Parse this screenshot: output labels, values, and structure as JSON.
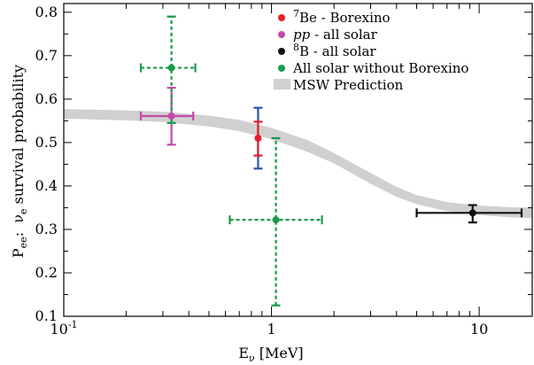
{
  "chart_data": {
    "type": "scatter",
    "title": "",
    "xlabel": "Eν [MeV]",
    "xlabel_parts": {
      "main": "E",
      "sub": "ν",
      "tail": " [MeV]"
    },
    "ylabel": "Pee: νe survival probability",
    "ylabel_parts": {
      "p": "P",
      "p_sub": "ee",
      "colon": ":  ",
      "nu": "ν",
      "nu_sub": "e",
      "tail": " survival probability"
    },
    "xscale": "log",
    "xlim": [
      0.1,
      18
    ],
    "ylim": [
      0.1,
      0.82
    ],
    "grid": false,
    "legend_position": "top-right",
    "x_ticks": [
      {
        "value": 0.1,
        "label_main": "10",
        "label_exp": "-1"
      },
      {
        "value": 1,
        "label_main": "1",
        "label_exp": ""
      },
      {
        "value": 10,
        "label_main": "10",
        "label_exp": ""
      }
    ],
    "y_ticks": [
      {
        "value": 0.1,
        "label": "0.1"
      },
      {
        "value": 0.2,
        "label": "0.2"
      },
      {
        "value": 0.3,
        "label": "0.3"
      },
      {
        "value": 0.4,
        "label": "0.4"
      },
      {
        "value": 0.5,
        "label": "0.5"
      },
      {
        "value": 0.6,
        "label": "0.6"
      },
      {
        "value": 0.7,
        "label": "0.7"
      },
      {
        "value": 0.8,
        "label": "0.8"
      }
    ],
    "series": [
      {
        "name": "7Be - Borexino",
        "legend_sup": "7",
        "legend_main": "Be - Borexino",
        "legend_italic": "",
        "color": "#e8202a",
        "errorbar_color": "#2a52b8",
        "errorbar_dashed": false,
        "points": [
          {
            "x": 0.862,
            "y": 0.51,
            "xerr": [
              0,
              0
            ],
            "yerr_outer": [
              0.44,
              0.58
            ],
            "yerr_inner": [
              0.47,
              0.548
            ]
          }
        ]
      },
      {
        "name": "pp - all solar",
        "legend_sup": "",
        "legend_italic": "pp",
        "legend_main": " - all solar",
        "color": "#c44aa8",
        "errorbar_color": "#c44aa8",
        "errorbar_dashed": false,
        "points": [
          {
            "x": 0.33,
            "y": 0.561,
            "xerr": [
              0.235,
              0.42
            ],
            "yerr_outer": [
              0.495,
              0.626
            ],
            "yerr_inner": null
          }
        ]
      },
      {
        "name": "8B - all solar",
        "legend_sup": "8",
        "legend_main": "B - all solar",
        "legend_italic": "",
        "color": "#111111",
        "errorbar_color": "#111111",
        "errorbar_dashed": false,
        "points": [
          {
            "x": 9.3,
            "y": 0.338,
            "xerr": [
              5.0,
              16.0
            ],
            "yerr_outer": [
              0.316,
              0.356
            ],
            "yerr_inner": null
          }
        ]
      },
      {
        "name": "All solar without Borexino",
        "legend_sup": "",
        "legend_main": "All solar without Borexino",
        "legend_italic": "",
        "color": "#1a9a4a",
        "errorbar_color": "#1a9a4a",
        "errorbar_dashed": true,
        "points": [
          {
            "x": 0.33,
            "y": 0.672,
            "xerr": [
              0.235,
              0.43
            ],
            "yerr_outer": [
              0.545,
              0.79
            ],
            "yerr_inner": null
          },
          {
            "x": 1.05,
            "y": 0.322,
            "xerr": [
              0.63,
              1.75
            ],
            "yerr_outer": [
              0.125,
              0.51
            ],
            "yerr_inner": null
          }
        ]
      }
    ],
    "band": {
      "name": "MSW Prediction",
      "color": "#d0d0d0",
      "points": [
        {
          "x": 0.1,
          "lo": 0.555,
          "hi": 0.577
        },
        {
          "x": 0.2,
          "lo": 0.551,
          "hi": 0.574
        },
        {
          "x": 0.3,
          "lo": 0.547,
          "hi": 0.571
        },
        {
          "x": 0.5,
          "lo": 0.537,
          "hi": 0.562
        },
        {
          "x": 0.7,
          "lo": 0.526,
          "hi": 0.552
        },
        {
          "x": 1.0,
          "lo": 0.508,
          "hi": 0.534
        },
        {
          "x": 1.5,
          "lo": 0.478,
          "hi": 0.505
        },
        {
          "x": 2.0,
          "lo": 0.452,
          "hi": 0.476
        },
        {
          "x": 3.0,
          "lo": 0.405,
          "hi": 0.43
        },
        {
          "x": 4.0,
          "lo": 0.375,
          "hi": 0.398
        },
        {
          "x": 5.0,
          "lo": 0.358,
          "hi": 0.379
        },
        {
          "x": 7.0,
          "lo": 0.342,
          "hi": 0.363
        },
        {
          "x": 10.0,
          "lo": 0.333,
          "hi": 0.355
        },
        {
          "x": 14.0,
          "lo": 0.328,
          "hi": 0.351
        },
        {
          "x": 18.0,
          "lo": 0.326,
          "hi": 0.35
        }
      ]
    }
  }
}
